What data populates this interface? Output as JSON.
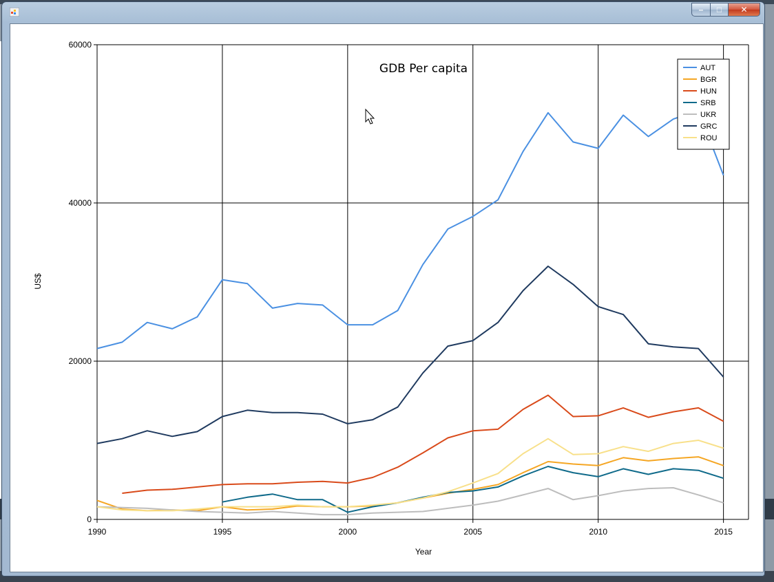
{
  "window": {
    "minimize_glyph": "–",
    "maximize_glyph": "□",
    "close_glyph": "✕"
  },
  "chart_data": {
    "type": "line",
    "title": "GDB Per capita",
    "xlabel": "Year",
    "ylabel": "US$",
    "xlim": [
      1990,
      2016
    ],
    "ylim": [
      0,
      60000
    ],
    "x_ticks": [
      1990,
      1995,
      2000,
      2005,
      2010,
      2015
    ],
    "y_ticks": [
      0,
      20000,
      40000,
      60000
    ],
    "grid": true,
    "legend_position": "top-right",
    "x": [
      1990,
      1991,
      1992,
      1993,
      1994,
      1995,
      1996,
      1997,
      1998,
      1999,
      2000,
      2001,
      2002,
      2003,
      2004,
      2005,
      2006,
      2007,
      2008,
      2009,
      2010,
      2011,
      2012,
      2013,
      2014,
      2015
    ],
    "series": [
      {
        "name": "AUT",
        "color": "#4a90e2",
        "values": [
          21600,
          22400,
          24900,
          24100,
          25600,
          30300,
          29800,
          26700,
          27300,
          27100,
          24600,
          24600,
          26400,
          32200,
          36700,
          38300,
          40400,
          46500,
          51400,
          47700,
          46900,
          51100,
          48400,
          50600,
          51700,
          43500
        ]
      },
      {
        "name": "BGR",
        "color": "#f5a623",
        "values": [
          2400,
          1300,
          1100,
          1200,
          1100,
          1600,
          1200,
          1300,
          1700,
          1600,
          1600,
          1700,
          2100,
          2700,
          3300,
          3800,
          4400,
          5900,
          7300,
          7000,
          6800,
          7800,
          7400,
          7700,
          7900,
          6800
        ]
      },
      {
        "name": "HUN",
        "color": "#d94a1a",
        "values": [
          null,
          3300,
          3700,
          3800,
          4100,
          4400,
          4500,
          4500,
          4700,
          4800,
          4600,
          5300,
          6600,
          8400,
          10300,
          11200,
          11400,
          13900,
          15700,
          13000,
          13100,
          14100,
          12900,
          13600,
          14100,
          12400
        ]
      },
      {
        "name": "SRB",
        "color": "#0f6a8a",
        "values": [
          null,
          null,
          null,
          null,
          null,
          2200,
          2800,
          3200,
          2500,
          2500,
          900,
          1600,
          2100,
          2800,
          3400,
          3600,
          4100,
          5500,
          6700,
          5900,
          5400,
          6400,
          5700,
          6400,
          6200,
          5200
        ]
      },
      {
        "name": "UKR",
        "color": "#bdbdbd",
        "values": [
          1600,
          1500,
          1400,
          1200,
          1000,
          900,
          800,
          1000,
          800,
          600,
          600,
          800,
          900,
          1000,
          1400,
          1800,
          2300,
          3100,
          3900,
          2500,
          3000,
          3600,
          3900,
          4000,
          3100,
          2100
        ]
      },
      {
        "name": "GRC",
        "color": "#1f3a5f",
        "values": [
          9600,
          10200,
          11200,
          10500,
          11100,
          13000,
          13800,
          13500,
          13500,
          13300,
          12100,
          12600,
          14200,
          18500,
          21900,
          22600,
          24900,
          28900,
          32000,
          29700,
          26900,
          25900,
          22200,
          21800,
          21600,
          18000
        ]
      },
      {
        "name": "ROU",
        "color": "#f8e08a",
        "values": [
          1600,
          1200,
          1100,
          1100,
          1300,
          1600,
          1600,
          1600,
          1800,
          1600,
          1600,
          1800,
          2100,
          2700,
          3500,
          4600,
          5800,
          8300,
          10200,
          8200,
          8300,
          9200,
          8600,
          9600,
          10000,
          9000
        ]
      }
    ]
  }
}
